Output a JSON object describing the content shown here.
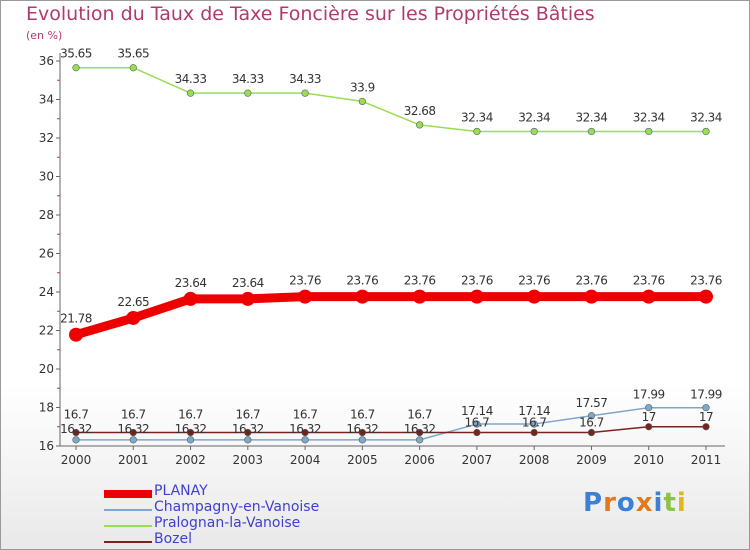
{
  "title": "Evolution du Taux de Taxe Foncière sur les Propriétés Bâties",
  "subtitle": "(en %)",
  "logo_text": "Proxiti",
  "chart_data": {
    "type": "line",
    "title": "Evolution du Taux de Taxe Foncière sur les Propriétés Bâties",
    "ylabel": "(en %)",
    "xlabel": "",
    "ylim": [
      16,
      36
    ],
    "yticks": [
      16,
      18,
      20,
      22,
      24,
      26,
      28,
      30,
      32,
      34,
      36
    ],
    "grid": false,
    "legend_position": "bottom-left",
    "categories": [
      "2000",
      "2001",
      "2002",
      "2003",
      "2004",
      "2005",
      "2006",
      "2007",
      "2008",
      "2009",
      "2010",
      "2011"
    ],
    "series": [
      {
        "name": "PLANAY",
        "color": "#ee0000",
        "values": [
          21.78,
          22.65,
          23.64,
          23.64,
          23.76,
          23.76,
          23.76,
          23.76,
          23.76,
          23.76,
          23.76,
          23.76
        ],
        "labels": [
          "21.78",
          "22.65",
          "23.64",
          "23.64",
          "23.76",
          "23.76",
          "23.76",
          "23.76",
          "23.76",
          "23.76",
          "23.76",
          "23.76"
        ]
      },
      {
        "name": "Champagny-en-Vanoise",
        "color": "#7fa6cc",
        "values": [
          16.32,
          16.32,
          16.32,
          16.32,
          16.32,
          16.32,
          16.32,
          17.14,
          17.14,
          17.57,
          17.99,
          17.99
        ],
        "labels": [
          "16.32",
          "16.32",
          "16.32",
          "16.32",
          "16.32",
          "16.32",
          "16.32",
          "17.14",
          "17.14",
          "17.57",
          "17.99",
          "17.99"
        ]
      },
      {
        "name": "Pralognan-la-Vanoise",
        "color": "#99dd55",
        "values": [
          35.65,
          35.65,
          34.33,
          34.33,
          34.33,
          33.9,
          32.68,
          32.34,
          32.34,
          32.34,
          32.34,
          32.34
        ],
        "labels": [
          "35.65",
          "35.65",
          "34.33",
          "34.33",
          "34.33",
          "33.9",
          "32.68",
          "32.34",
          "32.34",
          "32.34",
          "32.34",
          "32.34"
        ]
      },
      {
        "name": "Bozel",
        "color": "#7a2222",
        "values": [
          16.7,
          16.7,
          16.7,
          16.7,
          16.7,
          16.7,
          16.7,
          16.7,
          16.7,
          16.7,
          17,
          17
        ],
        "labels": [
          "16.7",
          "16.7",
          "16.7",
          "16.7",
          "16.7",
          "16.7",
          "16.7",
          "16.7",
          "16.7",
          "16.7",
          "17",
          "17"
        ]
      }
    ]
  }
}
